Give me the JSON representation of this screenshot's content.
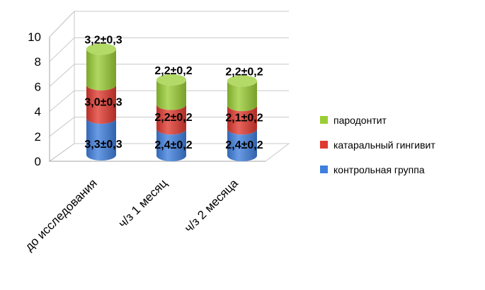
{
  "chart_data": {
    "type": "bar",
    "stacked": true,
    "style": "3d-cylinder",
    "categories": [
      "до исследования",
      "ч/з 1 месяц",
      "ч/з 2 месяца"
    ],
    "series": [
      {
        "name": "контрольная группа",
        "color": "#3f7fde",
        "values": [
          3.3,
          2.4,
          2.4
        ],
        "labels": [
          "3,3±0,3",
          "2,4±0,2",
          "2,4±0,2"
        ]
      },
      {
        "name": "катаральный гингивит",
        "color": "#e0392f",
        "values": [
          3.0,
          2.2,
          2.1
        ],
        "labels": [
          "3,0±0,3",
          "2,2±0,2",
          "2,1±0,2"
        ]
      },
      {
        "name": "пародонтит",
        "color": "#9acd34",
        "values": [
          3.2,
          2.2,
          2.2
        ],
        "labels": [
          "3,2±0,3",
          "2,2±0,2",
          "2,2±0,2"
        ]
      }
    ],
    "ylim": [
      0,
      10
    ],
    "yticks": [
      "0",
      "2",
      "4",
      "6",
      "8",
      "10"
    ],
    "grid": true,
    "legend_position": "right",
    "legend_order": [
      "пародонтит",
      "катаральный гингивит",
      "контрольная группа"
    ]
  }
}
